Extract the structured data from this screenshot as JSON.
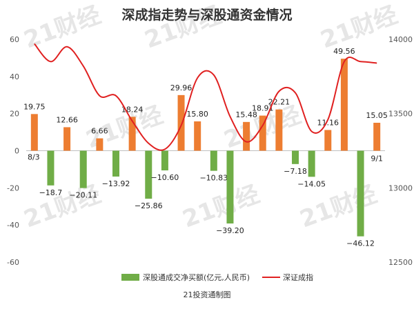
{
  "watermark": "21财经",
  "chart_data": {
    "type": "bar",
    "title": "深成指走势与深股通资金情况",
    "footer": "21投资通制图",
    "left_axis": {
      "min": -60,
      "max": 60,
      "ticks": [
        60,
        40,
        20,
        0,
        -20,
        -40,
        -60
      ]
    },
    "right_axis": {
      "min": 12500,
      "max": 14000,
      "ticks": [
        14000,
        13500,
        13000,
        12500
      ]
    },
    "date_labels": {
      "start": "8/3",
      "end": "9/1"
    },
    "series": [
      {
        "name": "深股通成交净买额(亿元,人民币)",
        "type": "bar",
        "axis": "left",
        "positive_color": "#ed7d31",
        "negative_color": "#70ad47",
        "values": [
          19.75,
          -18.7,
          12.66,
          -20.11,
          6.66,
          -13.92,
          18.24,
          -25.86,
          -10.6,
          29.96,
          15.8,
          -10.83,
          -39.2,
          15.48,
          18.91,
          22.21,
          -7.18,
          -14.05,
          11.16,
          49.56,
          -46.12,
          15.05
        ],
        "labels": [
          "19.75",
          "−18.7",
          "12.66",
          "−20.11",
          "6.66",
          "−13.92",
          "18.24",
          "−25.86",
          "−10.60",
          "29.96",
          "15.80",
          "−10.83",
          "−39.20",
          "15.48",
          "18.91",
          "22.21",
          "−7.18",
          "−14.05",
          "11.16",
          "49.56",
          "−46.12",
          "15.05"
        ]
      },
      {
        "name": "深证成指",
        "type": "line",
        "axis": "right",
        "color": "#e02020",
        "values": [
          13970,
          13850,
          13950,
          13820,
          13620,
          13620,
          13450,
          13300,
          13260,
          13420,
          13740,
          13760,
          13480,
          13310,
          13420,
          13650,
          13640,
          13380,
          13460,
          13850,
          13850,
          13840
        ]
      }
    ],
    "legend_position": "bottom-center",
    "grid": false
  }
}
